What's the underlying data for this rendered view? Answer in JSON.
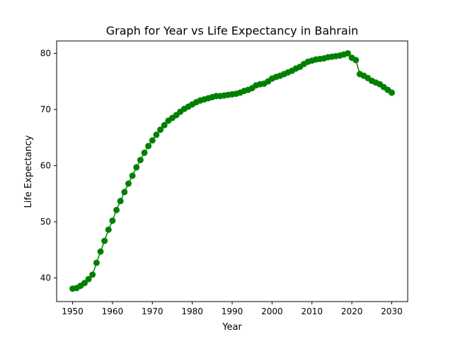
{
  "chart_data": {
    "type": "line",
    "title": "Graph for Year vs Life Expectancy in Bahrain",
    "xlabel": "Year",
    "ylabel": "Life Expectancy",
    "xlim": [
      1946.0,
      2034.0
    ],
    "ylim": [
      35.8,
      82.2
    ],
    "xticks": [
      1950,
      1960,
      1970,
      1980,
      1990,
      2000,
      2010,
      2020,
      2030
    ],
    "yticks": [
      40,
      50,
      60,
      70,
      80
    ],
    "grid": false,
    "legend": "none",
    "color": "#008000",
    "marker": "circle",
    "series": [
      {
        "x": [
          1950,
          1951,
          1952,
          1953,
          1954,
          1955,
          1956,
          1957,
          1958,
          1959,
          1960,
          1961,
          1962,
          1963,
          1964,
          1965,
          1966,
          1967,
          1968,
          1969,
          1970,
          1971,
          1972,
          1973,
          1974,
          1975,
          1976,
          1977,
          1978,
          1979,
          1980,
          1981,
          1982,
          1983,
          1984,
          1985,
          1986,
          1987,
          1988,
          1989,
          1990,
          1991,
          1992,
          1993,
          1994,
          1995,
          1996,
          1997,
          1998,
          1999,
          2000,
          2001,
          2002,
          2003,
          2004,
          2005,
          2006,
          2007,
          2008,
          2009,
          2010,
          2011,
          2012,
          2013,
          2014,
          2015,
          2016,
          2017,
          2018,
          2019,
          2020,
          2021,
          2022,
          2023,
          2024,
          2025,
          2026,
          2027,
          2028,
          2029,
          2030
        ],
        "values": [
          38.1,
          38.2,
          38.6,
          39.1,
          39.8,
          40.6,
          42.7,
          44.7,
          46.6,
          48.6,
          50.2,
          52.1,
          53.7,
          55.3,
          56.8,
          58.2,
          59.7,
          61.0,
          62.3,
          63.5,
          64.5,
          65.5,
          66.4,
          67.2,
          68.0,
          68.5,
          69.0,
          69.6,
          70.1,
          70.5,
          70.9,
          71.3,
          71.6,
          71.8,
          72.0,
          72.2,
          72.4,
          72.4,
          72.5,
          72.6,
          72.7,
          72.8,
          73.0,
          73.3,
          73.5,
          73.8,
          74.3,
          74.5,
          74.6,
          75.0,
          75.5,
          75.8,
          76.0,
          76.3,
          76.6,
          76.9,
          77.3,
          77.6,
          78.1,
          78.5,
          78.7,
          78.9,
          79.0,
          79.1,
          79.3,
          79.4,
          79.5,
          79.6,
          79.8,
          80.0,
          79.2,
          78.8,
          76.3,
          76.0,
          75.6,
          75.1,
          74.8,
          74.5,
          74.0,
          73.5,
          73.0
        ]
      }
    ]
  }
}
